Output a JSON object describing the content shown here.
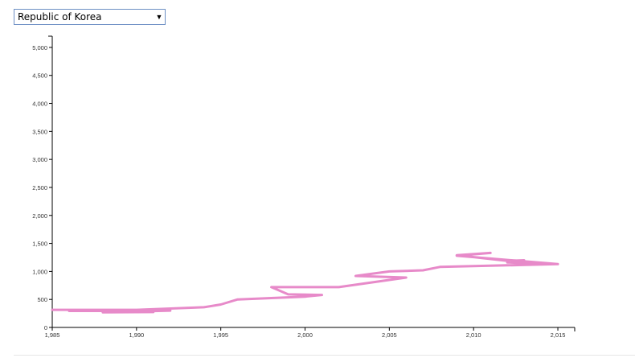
{
  "selector": {
    "selected_value": "Republic of Korea",
    "caret_icon": "triangle-down-icon"
  },
  "colors": {
    "line": "#e78ac9",
    "axis": "#000000",
    "select_border": "#6d8fc4"
  },
  "chart_data": {
    "type": "line",
    "title": "",
    "xlabel": "",
    "ylabel": "",
    "xlim": [
      1985,
      2016
    ],
    "ylim": [
      0,
      5200
    ],
    "x_ticks": [
      1985,
      1990,
      1995,
      2000,
      2005,
      2010,
      2015
    ],
    "x_tick_labels": [
      "1,985",
      "1,990",
      "1,995",
      "2,000",
      "2,005",
      "2,010",
      "2,015"
    ],
    "y_ticks": [
      0,
      500,
      1000,
      1500,
      2000,
      2500,
      3000,
      3500,
      4000,
      4500,
      5000
    ],
    "y_tick_labels": [
      "0",
      "500",
      "1,000",
      "1,500",
      "2,000",
      "2,500",
      "3,000",
      "3,500",
      "4,000",
      "4,500",
      "5,000"
    ],
    "grid": false,
    "series": [
      {
        "color": "#e78ac9",
        "points": [
          {
            "x": 1985,
            "y": 315
          },
          {
            "x": 1992,
            "y": 315
          },
          {
            "x": 1986,
            "y": 295
          },
          {
            "x": 1992,
            "y": 300
          },
          {
            "x": 1988,
            "y": 270
          },
          {
            "x": 1991,
            "y": 275
          },
          {
            "x": 1988,
            "y": 290
          },
          {
            "x": 1994,
            "y": 360
          },
          {
            "x": 1995,
            "y": 410
          },
          {
            "x": 1996,
            "y": 500
          },
          {
            "x": 2000,
            "y": 550
          },
          {
            "x": 2001,
            "y": 580
          },
          {
            "x": 1999,
            "y": 590
          },
          {
            "x": 1998,
            "y": 720
          },
          {
            "x": 2002,
            "y": 720
          },
          {
            "x": 2006,
            "y": 890
          },
          {
            "x": 2003,
            "y": 920
          },
          {
            "x": 2005,
            "y": 1000
          },
          {
            "x": 2007,
            "y": 1020
          },
          {
            "x": 2008,
            "y": 1080
          },
          {
            "x": 2015,
            "y": 1130
          },
          {
            "x": 2012,
            "y": 1160
          },
          {
            "x": 2013,
            "y": 1200
          },
          {
            "x": 2012,
            "y": 1190
          },
          {
            "x": 2009,
            "y": 1290
          },
          {
            "x": 2011,
            "y": 1330
          },
          {
            "x": 2009,
            "y": 1280
          },
          {
            "x": 2015,
            "y": 1130
          }
        ]
      }
    ]
  }
}
